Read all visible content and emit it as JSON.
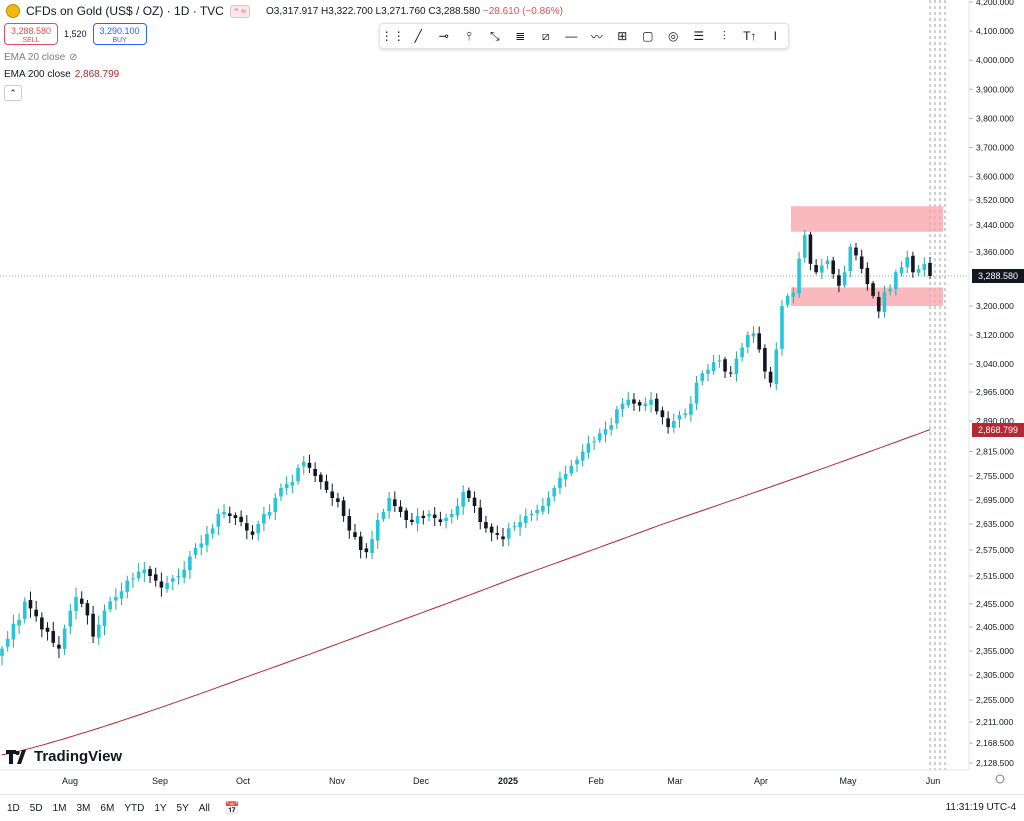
{
  "header": {
    "symbol": "CFDs on Gold (US$ / OZ) · 1D · TVC",
    "ohlc": "O3,317.917 H3,322.700 L3,271.760 C3,288.580",
    "change": "−28.610 (−0.86%)"
  },
  "trade": {
    "sell_price": "3,288.580",
    "sell_label": "SELL",
    "quantity": "1,520",
    "buy_price": "3,290.100",
    "buy_label": "BUY"
  },
  "indicators": [
    {
      "label": "EMA 20 close",
      "value": ""
    },
    {
      "label": "EMA 200 close",
      "value": "2,868.799"
    }
  ],
  "toolbar": {
    "tools": [
      "drag-handle-icon",
      "trend-line-icon",
      "horizontal-ray-icon",
      "vertical-line-icon",
      "pitchfork-icon",
      "parallel-channel-icon",
      "flat-top-icon",
      "horizontal-line-icon",
      "pattern-icon",
      "crosshair-grid-icon",
      "rectangle-icon",
      "circle-icon",
      "fib-retracement-icon",
      "fib-extension-icon",
      "text-icon",
      "measure-icon"
    ]
  },
  "price_axis": {
    "ticks": [
      "4,200.000",
      "4,100.000",
      "4,000.000",
      "3,900.000",
      "3,800.000",
      "3,700.000",
      "3,600.000",
      "3,520.000",
      "3,440.000",
      "3,360.000",
      "3,200.000",
      "3,120.000",
      "3,040.000",
      "2,965.000",
      "2,890.000",
      "2,815.000",
      "2,755.000",
      "2,695.000",
      "2,635.000",
      "2,575.000",
      "2,515.000",
      "2,455.000",
      "2,405.000",
      "2,355.000",
      "2,305.000",
      "2,255.000",
      "2,211.000",
      "2,168.500",
      "2,128.500"
    ],
    "last_price": "3,288.580",
    "ema_label": "2,868.799"
  },
  "time_axis": [
    "Aug",
    "Sep",
    "Oct",
    "Nov",
    "Dec",
    "2025",
    "Feb",
    "Mar",
    "Apr",
    "May",
    "Jun"
  ],
  "bottom": {
    "timeframes": [
      "1D",
      "5D",
      "1M",
      "3M",
      "6M",
      "YTD",
      "1Y",
      "5Y",
      "All"
    ],
    "clock": "11:31:19 UTC-4"
  },
  "logo": "TradingView",
  "colors": {
    "up": "#22ab94",
    "up_fill": "#26c6da",
    "down": "#131722",
    "ema": "#b22833",
    "zone": "#f7a1a9",
    "last": "#131722"
  },
  "chart_data": {
    "type": "candlestick",
    "x_range": [
      "2024-07-10",
      "2025-05-30"
    ],
    "y_range": [
      2128.5,
      4200
    ],
    "resistance_zone": [
      3420,
      3500
    ],
    "support_zone": [
      3200,
      3255
    ],
    "closes": [
      2360,
      2380,
      2412,
      2420,
      2460,
      2445,
      2428,
      2400,
      2395,
      2372,
      2360,
      2402,
      2440,
      2470,
      2455,
      2430,
      2385,
      2410,
      2440,
      2460,
      2470,
      2482,
      2505,
      2510,
      2525,
      2530,
      2515,
      2505,
      2490,
      2500,
      2510,
      2515,
      2530,
      2560,
      2580,
      2590,
      2612,
      2625,
      2660,
      2665,
      2655,
      2650,
      2640,
      2620,
      2610,
      2635,
      2660,
      2665,
      2700,
      2725,
      2735,
      2740,
      2775,
      2790,
      2775,
      2755,
      2740,
      2720,
      2700,
      2690,
      2655,
      2620,
      2605,
      2575,
      2570,
      2600,
      2645,
      2665,
      2700,
      2680,
      2665,
      2645,
      2640,
      2655,
      2650,
      2660,
      2650,
      2640,
      2650,
      2660,
      2680,
      2715,
      2700,
      2680,
      2640,
      2625,
      2615,
      2610,
      2600,
      2625,
      2630,
      2640,
      2655,
      2660,
      2670,
      2680,
      2700,
      2725,
      2750,
      2760,
      2780,
      2795,
      2815,
      2835,
      2840,
      2860,
      2870,
      2880,
      2920,
      2935,
      2945,
      2935,
      2930,
      2935,
      2945,
      2915,
      2900,
      2875,
      2890,
      2905,
      2910,
      2935,
      2990,
      3015,
      3025,
      3045,
      3050,
      3020,
      3015,
      3055,
      3085,
      3120,
      3125,
      3080,
      3020,
      2990,
      3080,
      3200,
      3230,
      3240,
      3340,
      3410,
      3325,
      3300,
      3320,
      3335,
      3295,
      3260,
      3300,
      3375,
      3350,
      3310,
      3265,
      3230,
      3185,
      3240,
      3250,
      3300,
      3315,
      3345,
      3300,
      3310,
      3325,
      3289
    ]
  }
}
